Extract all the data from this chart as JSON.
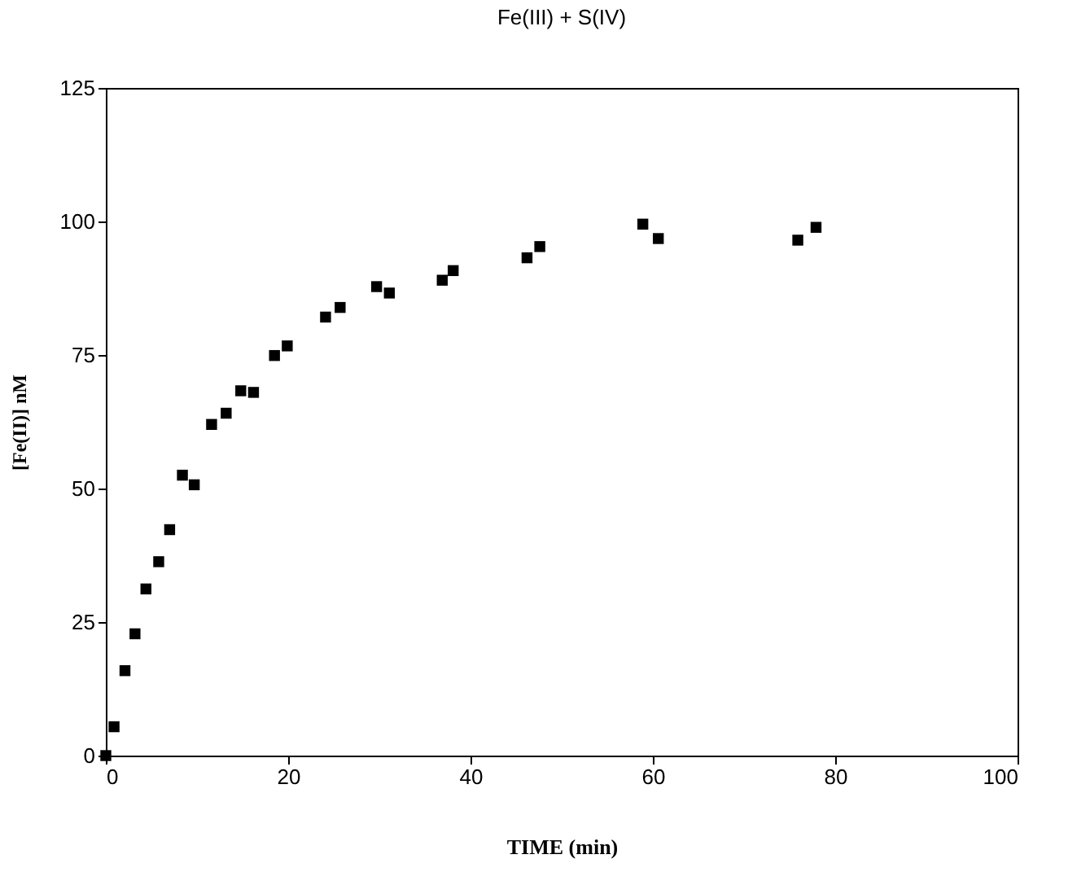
{
  "chart_data": {
    "type": "scatter",
    "title": "Fe(III)   +   S(IV)",
    "xlabel": "TIME (min)",
    "ylabel": "[Fe(II)] nM",
    "x": [
      0,
      0.9,
      2.1,
      3.2,
      4.4,
      5.8,
      7.0,
      8.4,
      9.7,
      11.6,
      13.2,
      14.8,
      16.2,
      18.5,
      19.9,
      24.1,
      25.7,
      29.7,
      31.1,
      36.9,
      38.1,
      46.2,
      47.6,
      58.9,
      60.6,
      75.9,
      77.9
    ],
    "series": [
      {
        "color": "#000000",
        "values": [
          0,
          5.4,
          15.9,
          22.8,
          31.2,
          36.3,
          42.3,
          52.5,
          50.7,
          62.0,
          64.1,
          68.3,
          68.0,
          74.9,
          76.7,
          82.1,
          83.9,
          87.8,
          86.6,
          89.0,
          90.8,
          93.2,
          95.3,
          99.5,
          96.8,
          96.5,
          98.9
        ]
      }
    ],
    "xlim": [
      0,
      100
    ],
    "xticks": [
      0,
      20,
      40,
      60,
      80,
      100
    ],
    "ylim": [
      0,
      125
    ],
    "yticks": [
      0,
      25,
      50,
      75,
      100,
      125
    ],
    "marker": "square",
    "grid": false,
    "legend": false
  }
}
